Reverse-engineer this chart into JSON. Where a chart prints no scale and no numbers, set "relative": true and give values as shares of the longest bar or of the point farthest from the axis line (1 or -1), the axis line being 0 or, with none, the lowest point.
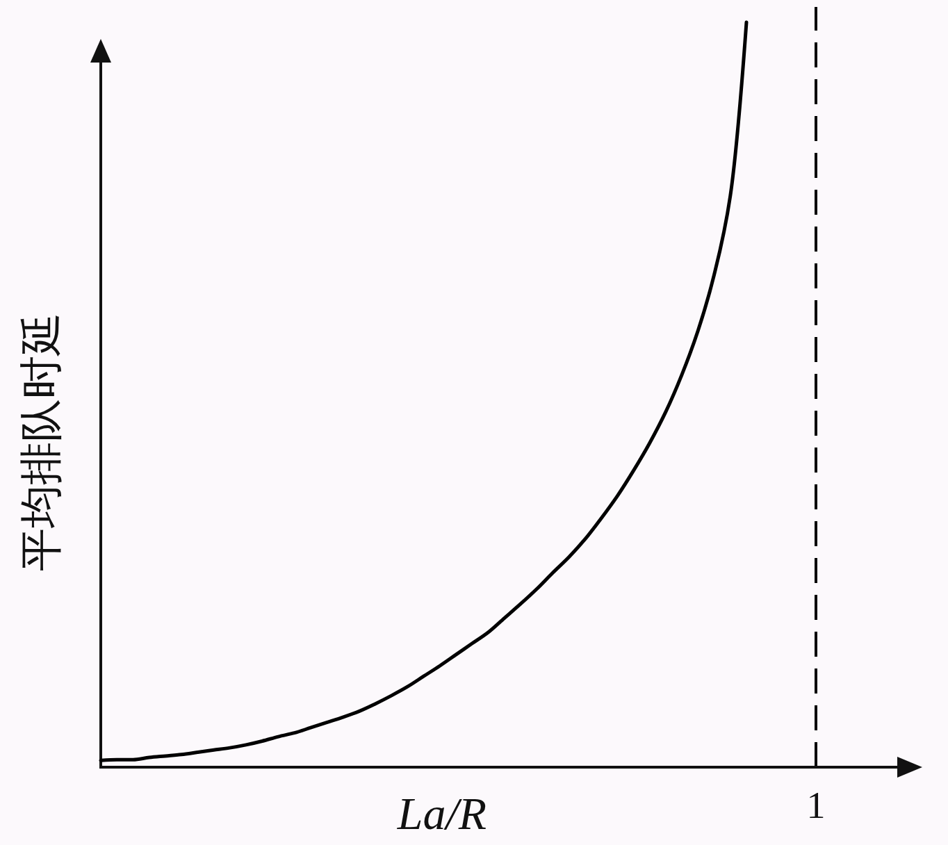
{
  "chart_data": {
    "type": "line",
    "xlabel": "La/R",
    "ylabel": "平均排队时延",
    "relative": true,
    "categories": [
      null,
      null,
      null,
      null,
      null,
      null,
      null,
      null,
      null,
      null,
      null,
      null,
      null,
      null,
      null,
      null,
      null,
      null,
      null,
      null,
      null,
      null,
      null,
      null,
      null,
      null,
      null,
      null,
      null,
      null,
      null,
      null,
      null,
      null,
      null,
      null,
      null,
      null,
      null,
      null,
      null
    ],
    "series": [
      {
        "color": "#000000",
        "line_style": "solid",
        "values": [
          0.009,
          0.01,
          0.01,
          0.013,
          0.015,
          0.017,
          0.02,
          0.023,
          0.026,
          0.03,
          0.035,
          0.041,
          0.046,
          0.053,
          0.06,
          0.067,
          0.075,
          0.085,
          0.096,
          0.108,
          0.122,
          0.136,
          0.151,
          0.166,
          0.181,
          0.2,
          0.219,
          0.239,
          0.261,
          0.282,
          0.306,
          0.334,
          0.364,
          0.398,
          0.435,
          0.477,
          0.527,
          0.586,
          0.661,
          0.767,
          1
        ]
      }
    ],
    "annotations": [
      "1"
    ]
  }
}
